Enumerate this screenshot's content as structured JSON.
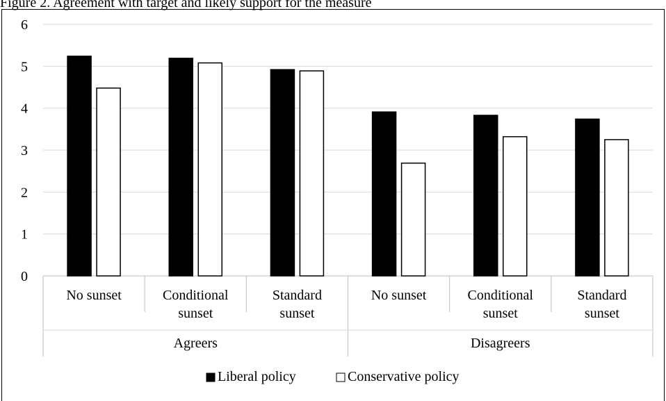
{
  "caption": "Figure 2. Agreement with target and likely support for the measure",
  "chart_data": {
    "type": "bar",
    "groups": [
      {
        "label": "Agreers",
        "categories": [
          "No sunset",
          "Conditional sunset",
          "Standard sunset"
        ]
      },
      {
        "label": "Disagreers",
        "categories": [
          "No sunset",
          "Conditional sunset",
          "Standard sunset"
        ]
      }
    ],
    "category_lines": [
      [
        "No sunset"
      ],
      [
        "Conditional",
        "sunset"
      ],
      [
        "Standard",
        "sunset"
      ],
      [
        "No sunset"
      ],
      [
        "Conditional",
        "sunset"
      ],
      [
        "Standard",
        "sunset"
      ]
    ],
    "series": [
      {
        "name": "Liberal policy",
        "color": "#000000",
        "values": [
          5.24,
          5.19,
          4.92,
          3.91,
          3.83,
          3.74
        ]
      },
      {
        "name": "Conservative policy",
        "color": "#ffffff",
        "values": [
          4.48,
          5.08,
          4.89,
          2.69,
          3.32,
          3.25
        ]
      }
    ],
    "ylim": [
      0,
      6
    ],
    "yticks": [
      0,
      1,
      2,
      3,
      4,
      5,
      6
    ],
    "grid": true,
    "legend_position": "bottom-center"
  }
}
